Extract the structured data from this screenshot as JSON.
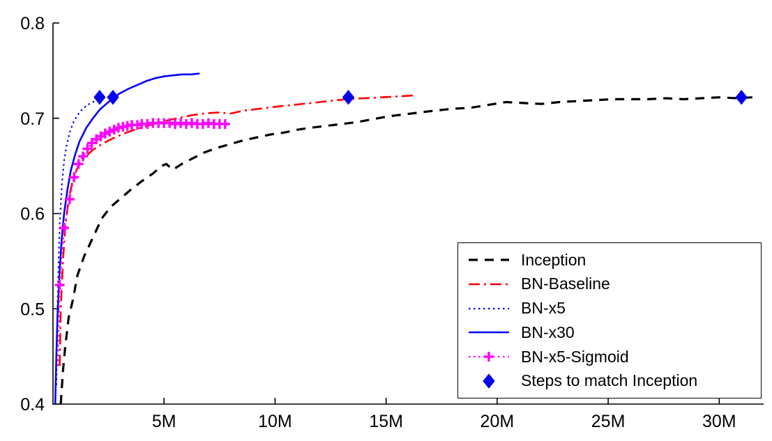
{
  "chart_data": {
    "type": "line",
    "title": "",
    "xlabel": "",
    "ylabel": "",
    "xlim": [
      0,
      32
    ],
    "ylim": [
      0.4,
      0.8
    ],
    "x_unit": "millions of training steps",
    "grid": false,
    "x_ticks": [
      5,
      10,
      15,
      20,
      25,
      30
    ],
    "x_tick_labels": [
      "5M",
      "10M",
      "15M",
      "20M",
      "25M",
      "30M"
    ],
    "y_ticks": [
      0.4,
      0.5,
      0.6,
      0.7,
      0.8
    ],
    "y_tick_labels": [
      "0.4",
      "0.5",
      "0.6",
      "0.7",
      "0.8"
    ],
    "legend": {
      "position": "bottom-right"
    },
    "series": [
      {
        "name": "Inception",
        "color": "#000000",
        "line": "dashed",
        "width": 3.2,
        "x": [
          0.35,
          0.45,
          0.55,
          0.7,
          0.9,
          1.1,
          1.4,
          1.6,
          1.9,
          2.2,
          2.6,
          3.0,
          3.5,
          4.0,
          4.5,
          4.9,
          5.1,
          5.4,
          5.8,
          6.3,
          6.8,
          7.4,
          8.0,
          8.6,
          9.2,
          9.8,
          10.4,
          11.0,
          11.6,
          12.3,
          13.0,
          13.7,
          14.4,
          15.1,
          15.8,
          16.5,
          17.2,
          18.0,
          18.8,
          19.6,
          20.4,
          21.2,
          22.0,
          22.8,
          23.6,
          24.4,
          25.2,
          26.0,
          26.8,
          27.6,
          28.4,
          29.2,
          30.0,
          30.8,
          31.5
        ],
        "y": [
          0.4,
          0.435,
          0.46,
          0.49,
          0.51,
          0.535,
          0.555,
          0.565,
          0.58,
          0.595,
          0.607,
          0.615,
          0.625,
          0.634,
          0.642,
          0.65,
          0.652,
          0.646,
          0.652,
          0.658,
          0.664,
          0.669,
          0.673,
          0.677,
          0.68,
          0.683,
          0.685,
          0.688,
          0.69,
          0.692,
          0.694,
          0.696,
          0.699,
          0.702,
          0.704,
          0.706,
          0.708,
          0.71,
          0.711,
          0.714,
          0.717,
          0.716,
          0.715,
          0.717,
          0.718,
          0.719,
          0.72,
          0.72,
          0.72,
          0.721,
          0.72,
          0.721,
          0.722,
          0.721,
          0.722
        ]
      },
      {
        "name": "BN-Baseline",
        "color": "#ff0000",
        "line": "dashdot",
        "width": 2.6,
        "x": [
          0.3,
          0.35,
          0.45,
          0.55,
          0.7,
          0.9,
          1.1,
          1.4,
          1.8,
          2.2,
          2.7,
          3.2,
          3.8,
          4.4,
          5.0,
          5.6,
          6.2,
          6.8,
          7.4,
          8.0,
          8.6,
          9.3,
          10.0,
          10.8,
          11.6,
          12.4,
          13.2,
          14.0,
          14.8,
          15.6,
          16.3
        ],
        "y": [
          0.44,
          0.5,
          0.55,
          0.585,
          0.615,
          0.636,
          0.648,
          0.658,
          0.667,
          0.673,
          0.679,
          0.684,
          0.689,
          0.693,
          0.697,
          0.7,
          0.703,
          0.705,
          0.706,
          0.705,
          0.708,
          0.71,
          0.712,
          0.714,
          0.716,
          0.718,
          0.72,
          0.721,
          0.722,
          0.723,
          0.724
        ]
      },
      {
        "name": "BN-x5",
        "color": "#0000ff",
        "line": "dotted",
        "width": 2.2,
        "x": [
          0.15,
          0.2,
          0.25,
          0.3,
          0.4,
          0.5,
          0.6,
          0.75,
          0.9,
          1.1,
          1.3,
          1.5,
          1.7,
          1.9,
          2.1,
          2.3
        ],
        "y": [
          0.42,
          0.5,
          0.55,
          0.59,
          0.63,
          0.655,
          0.67,
          0.685,
          0.695,
          0.703,
          0.709,
          0.713,
          0.716,
          0.718,
          0.72,
          0.721
        ]
      },
      {
        "name": "BN-x30",
        "color": "#0000ff",
        "line": "solid",
        "width": 2.6,
        "x": [
          0.1,
          0.15,
          0.2,
          0.3,
          0.4,
          0.5,
          0.65,
          0.8,
          1.0,
          1.2,
          1.5,
          1.8,
          2.1,
          2.4,
          2.7,
          3.0,
          3.4,
          3.8,
          4.2,
          4.6,
          5.0,
          5.4,
          5.8,
          6.2,
          6.6
        ],
        "y": [
          0.4,
          0.45,
          0.49,
          0.54,
          0.575,
          0.6,
          0.625,
          0.645,
          0.662,
          0.676,
          0.69,
          0.7,
          0.709,
          0.715,
          0.721,
          0.726,
          0.731,
          0.735,
          0.739,
          0.742,
          0.744,
          0.745,
          0.746,
          0.746,
          0.747
        ]
      },
      {
        "name": "BN-x5-Sigmoid",
        "color": "#ff00ff",
        "line": "dotted",
        "width": 2.2,
        "marker": "plus",
        "x": [
          0.22,
          0.3,
          0.5,
          0.75,
          0.95,
          1.15,
          1.35,
          1.55,
          1.75,
          1.95,
          2.15,
          2.35,
          2.55,
          2.75,
          2.95,
          3.15,
          3.35,
          3.55,
          3.8,
          4.0,
          4.25,
          4.5,
          4.75,
          5.0,
          5.25,
          5.5,
          5.75,
          6.0,
          6.25,
          6.5,
          6.75,
          7.0,
          7.25,
          7.5,
          7.75
        ],
        "y": [
          0.44,
          0.525,
          0.585,
          0.615,
          0.638,
          0.652,
          0.66,
          0.668,
          0.674,
          0.678,
          0.681,
          0.684,
          0.686,
          0.688,
          0.69,
          0.691,
          0.692,
          0.693,
          0.693,
          0.694,
          0.694,
          0.695,
          0.695,
          0.695,
          0.695,
          0.694,
          0.695,
          0.694,
          0.695,
          0.694,
          0.694,
          0.695,
          0.694,
          0.694,
          0.694
        ],
        "marker_x": [
          0.3,
          0.5,
          0.75,
          0.95,
          1.15,
          1.35,
          1.55,
          1.75,
          1.95,
          2.15,
          2.35,
          2.55,
          2.75,
          2.95,
          3.15,
          3.35,
          3.55,
          3.8,
          4.0,
          4.25,
          4.5,
          4.75,
          5.0,
          5.25,
          5.5,
          5.75,
          6.0,
          6.25,
          6.5,
          6.75,
          7.0,
          7.25,
          7.5,
          7.75
        ],
        "marker_y": [
          0.525,
          0.585,
          0.615,
          0.638,
          0.652,
          0.66,
          0.668,
          0.674,
          0.678,
          0.681,
          0.684,
          0.686,
          0.688,
          0.69,
          0.691,
          0.692,
          0.693,
          0.693,
          0.694,
          0.694,
          0.695,
          0.695,
          0.695,
          0.695,
          0.694,
          0.695,
          0.694,
          0.695,
          0.694,
          0.694,
          0.695,
          0.694,
          0.694,
          0.694
        ]
      },
      {
        "name": "Steps to match Inception",
        "color": "#0000ee",
        "line": "none",
        "width": 0,
        "marker": "diamond",
        "marker_x": [
          2.1,
          2.7,
          13.3,
          31.0
        ],
        "marker_y": [
          0.722,
          0.722,
          0.722,
          0.722
        ]
      }
    ]
  }
}
